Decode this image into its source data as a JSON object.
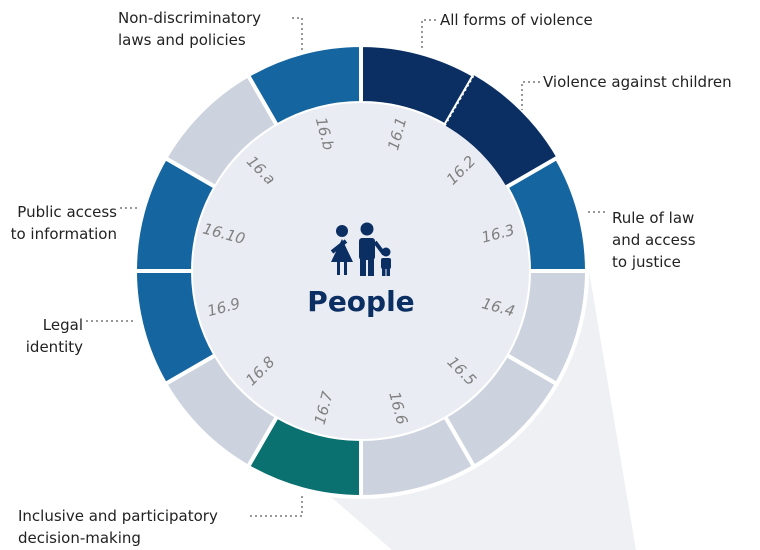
{
  "center_label": "People",
  "segments": [
    {
      "code": "16.1"
    },
    {
      "code": "16.2"
    },
    {
      "code": "16.3"
    },
    {
      "code": "16.4"
    },
    {
      "code": "16.5"
    },
    {
      "code": "16.6"
    },
    {
      "code": "16.7"
    },
    {
      "code": "16.8"
    },
    {
      "code": "16.9"
    },
    {
      "code": "16.10"
    },
    {
      "code": "16.a"
    },
    {
      "code": "16.b"
    }
  ],
  "callouts": [
    {
      "lines": [
        "Non-discriminatory",
        "laws and policies"
      ]
    },
    {
      "lines": [
        "All forms of violence"
      ]
    },
    {
      "lines": [
        "Violence against children"
      ]
    },
    {
      "lines": [
        "Rule of law",
        "and access",
        "to justice"
      ]
    },
    {
      "lines": [
        "Public access",
        "to information"
      ]
    },
    {
      "lines": [
        "Legal",
        "identity"
      ]
    },
    {
      "lines": [
        "Inclusive and participatory",
        "decision-making"
      ]
    }
  ]
}
